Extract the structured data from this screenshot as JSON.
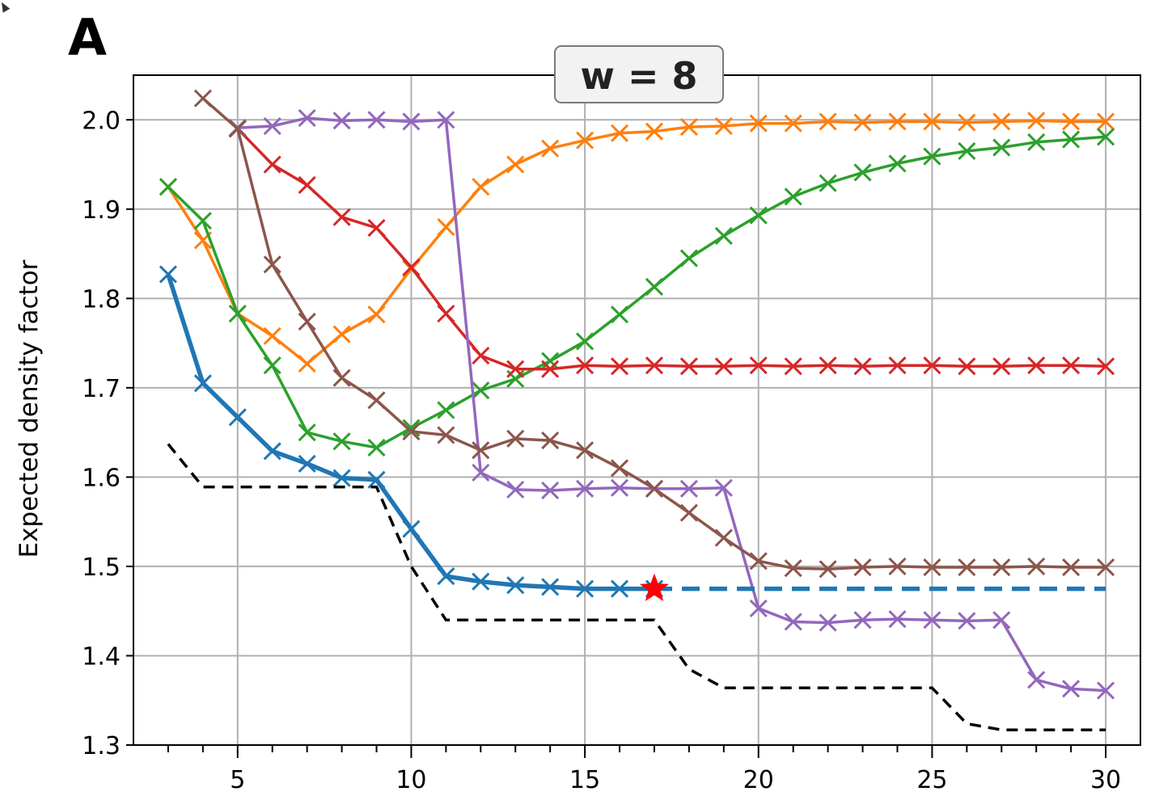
{
  "chart_data": {
    "type": "line",
    "panel_label": "A",
    "title": "w = 8",
    "xlabel": "",
    "ylabel": "Expected density factor",
    "xlim": [
      2,
      31
    ],
    "ylim": [
      1.3,
      2.05
    ],
    "xticks_major": [
      5,
      10,
      15,
      20,
      25,
      30
    ],
    "xticks_minor": [
      3,
      4,
      6,
      7,
      8,
      9,
      11,
      12,
      13,
      14,
      16,
      17,
      18,
      19,
      21,
      22,
      23,
      24,
      26,
      27,
      28,
      29
    ],
    "yticks": [
      "1.3",
      "1.4",
      "1.5",
      "1.6",
      "1.7",
      "1.8",
      "1.9",
      "2.0"
    ],
    "grid": true,
    "series": [
      {
        "color": "#ff7f0e",
        "x": [
          3,
          4,
          5,
          6,
          7,
          8,
          9,
          10,
          11,
          12,
          13,
          14,
          15,
          16,
          17,
          18,
          19,
          20,
          21,
          22,
          23,
          24,
          25,
          26,
          27,
          28,
          29,
          30
        ],
        "y": [
          1.925,
          1.865,
          1.783,
          1.758,
          1.727,
          1.76,
          1.782,
          1.833,
          1.88,
          1.925,
          1.95,
          1.968,
          1.977,
          1.985,
          1.987,
          1.992,
          1.993,
          1.996,
          1.996,
          1.998,
          1.997,
          1.998,
          1.998,
          1.997,
          1.998,
          1.999,
          1.998,
          1.998
        ]
      },
      {
        "color": "#2ca02c",
        "x": [
          3,
          4,
          5,
          6,
          7,
          8,
          9,
          10,
          11,
          12,
          13,
          14,
          15,
          16,
          17,
          18,
          19,
          20,
          21,
          22,
          23,
          24,
          25,
          26,
          27,
          28,
          29,
          30
        ],
        "y": [
          1.925,
          1.887,
          1.783,
          1.725,
          1.65,
          1.64,
          1.633,
          1.655,
          1.675,
          1.697,
          1.71,
          1.73,
          1.752,
          1.782,
          1.813,
          1.845,
          1.87,
          1.893,
          1.914,
          1.929,
          1.941,
          1.951,
          1.959,
          1.965,
          1.969,
          1.975,
          1.978,
          1.981
        ]
      },
      {
        "color": "#d62728",
        "x": [
          5,
          6,
          7,
          8,
          9,
          10,
          11,
          12,
          13,
          14,
          15,
          16,
          17,
          18,
          19,
          20,
          21,
          22,
          23,
          24,
          25,
          26,
          27,
          28,
          29,
          30
        ],
        "y": [
          1.99,
          1.95,
          1.927,
          1.891,
          1.879,
          1.835,
          1.783,
          1.736,
          1.721,
          1.721,
          1.725,
          1.724,
          1.725,
          1.724,
          1.724,
          1.725,
          1.724,
          1.725,
          1.724,
          1.725,
          1.725,
          1.724,
          1.724,
          1.725,
          1.725,
          1.724
        ]
      },
      {
        "color": "#9467bd",
        "x": [
          5,
          6,
          7,
          8,
          9,
          10,
          11,
          12,
          13,
          14,
          15,
          16,
          17,
          18,
          19,
          20,
          21,
          22,
          23,
          24,
          25,
          26,
          27,
          28,
          29,
          30
        ],
        "y": [
          1.991,
          1.993,
          2.002,
          1.999,
          2.0,
          1.998,
          2.0,
          1.605,
          1.586,
          1.585,
          1.587,
          1.588,
          1.587,
          1.587,
          1.588,
          1.453,
          1.438,
          1.437,
          1.44,
          1.441,
          1.44,
          1.439,
          1.44,
          1.373,
          1.363,
          1.361
        ]
      },
      {
        "color": "#8c564b",
        "x": [
          4,
          5,
          6,
          7,
          8,
          9,
          10,
          11,
          12,
          13,
          14,
          15,
          16,
          17,
          18,
          19,
          20,
          21,
          22,
          23,
          24,
          25,
          26,
          27,
          28,
          29,
          30
        ],
        "y": [
          2.024,
          1.99,
          1.838,
          1.774,
          1.711,
          1.686,
          1.651,
          1.647,
          1.63,
          1.643,
          1.641,
          1.63,
          1.61,
          1.587,
          1.56,
          1.532,
          1.506,
          1.498,
          1.497,
          1.499,
          1.5,
          1.499,
          1.499,
          1.499,
          1.5,
          1.499,
          1.499
        ]
      },
      {
        "color": "#1f77b4",
        "thick": true,
        "x": [
          3,
          4,
          5,
          6,
          7,
          8,
          9,
          10,
          11,
          12,
          13,
          14,
          15,
          16,
          17
        ],
        "y": [
          1.827,
          1.705,
          1.667,
          1.629,
          1.615,
          1.599,
          1.597,
          1.542,
          1.489,
          1.483,
          1.479,
          1.477,
          1.475,
          1.475,
          1.475
        ]
      },
      {
        "color": "#1f77b4",
        "dashed": true,
        "thick": true,
        "x": [
          17,
          30
        ],
        "y": [
          1.475,
          1.475
        ]
      },
      {
        "color": "#000000",
        "dashed": true,
        "x": [
          3,
          4,
          5,
          6,
          7,
          8,
          9,
          10,
          11,
          12,
          13,
          14,
          15,
          16,
          17,
          18,
          19,
          20,
          21,
          22,
          23,
          24,
          25,
          26,
          27,
          28,
          29,
          30
        ],
        "y": [
          1.637,
          1.589,
          1.589,
          1.589,
          1.589,
          1.589,
          1.589,
          1.5,
          1.44,
          1.44,
          1.44,
          1.44,
          1.44,
          1.44,
          1.44,
          1.385,
          1.364,
          1.364,
          1.364,
          1.364,
          1.364,
          1.364,
          1.364,
          1.324,
          1.317,
          1.317,
          1.317,
          1.317
        ]
      }
    ],
    "annotations": [
      {
        "type": "star",
        "x": 17,
        "y": 1.475,
        "color": "#ff0000"
      }
    ]
  }
}
